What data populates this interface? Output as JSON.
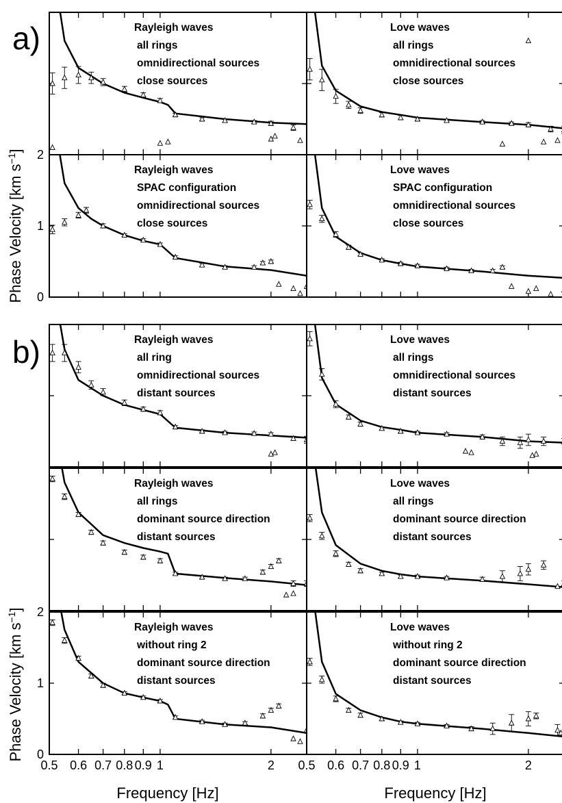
{
  "figure": {
    "group_labels": [
      "a)",
      "b)"
    ],
    "xlabel": "Frequency [Hz]",
    "ylabel": "Phase Velocity [km s",
    "ylabel_sup": "−1",
    "ylabel_end": "]",
    "x_ticks": [
      {
        "v": 0.5,
        "label": "0.5"
      },
      {
        "v": 0.6,
        "label": "0.6"
      },
      {
        "v": 0.7,
        "label": "0.7"
      },
      {
        "v": 0.8,
        "label": "0.8"
      },
      {
        "v": 0.9,
        "label": "0.9"
      },
      {
        "v": 1.0,
        "label": "1"
      },
      {
        "v": 2.0,
        "label": "2"
      }
    ],
    "y_ticks": [
      {
        "v": 0,
        "label": "0"
      },
      {
        "v": 1,
        "label": "1"
      },
      {
        "v": 2,
        "label": "2"
      }
    ]
  },
  "chart_data": [
    {
      "type": "line",
      "panel": "a-rayleigh-top",
      "xscale": "log",
      "xlim": [
        0.5,
        2.5
      ],
      "ylim": [
        0,
        2
      ],
      "annotations": [
        "Rayleigh waves",
        "all rings",
        "omnidirectional sources",
        "close sources"
      ],
      "model_curve": {
        "x": [
          0.5,
          0.55,
          0.6,
          0.7,
          0.8,
          0.9,
          1.0,
          1.05,
          1.1,
          1.5,
          2.0,
          2.5
        ],
        "y": [
          3.0,
          1.6,
          1.22,
          1.0,
          0.87,
          0.8,
          0.74,
          0.7,
          0.58,
          0.5,
          0.45,
          0.43
        ]
      },
      "observed": {
        "x": [
          0.51,
          0.55,
          0.6,
          0.65,
          0.7,
          0.8,
          0.9,
          1.0,
          1.1,
          1.3,
          1.5,
          1.8,
          2.0,
          2.3
        ],
        "y": [
          1.0,
          1.08,
          1.12,
          1.08,
          1.02,
          0.92,
          0.84,
          0.76,
          0.56,
          0.5,
          0.48,
          0.46,
          0.44,
          0.38
        ],
        "err": [
          0.15,
          0.15,
          0.12,
          0.08,
          0.05,
          0.04,
          0.03,
          0.03,
          0.02,
          0.02,
          0.02,
          0.02,
          0.03,
          0.04
        ]
      },
      "outliers": {
        "x": [
          0.51,
          1.0,
          1.05,
          2.0,
          2.05,
          2.4
        ],
        "y": [
          0.1,
          0.16,
          0.18,
          0.22,
          0.26,
          0.2
        ]
      }
    },
    {
      "type": "line",
      "panel": "a-love-top",
      "xscale": "log",
      "xlim": [
        0.5,
        2.5
      ],
      "ylim": [
        0,
        2
      ],
      "annotations": [
        "Love waves",
        "all rings",
        "omnidirectional sources",
        "close sources"
      ],
      "model_curve": {
        "x": [
          0.5,
          0.55,
          0.6,
          0.7,
          0.8,
          0.9,
          1.0,
          1.5,
          2.0,
          2.5
        ],
        "y": [
          2.9,
          1.25,
          0.9,
          0.68,
          0.6,
          0.56,
          0.52,
          0.46,
          0.42,
          0.37
        ]
      },
      "observed": {
        "x": [
          0.51,
          0.55,
          0.6,
          0.65,
          0.7,
          0.8,
          0.9,
          1.0,
          1.2,
          1.5,
          1.8,
          2.0,
          2.3,
          2.5
        ],
        "y": [
          1.2,
          1.05,
          0.82,
          0.7,
          0.62,
          0.56,
          0.52,
          0.5,
          0.48,
          0.46,
          0.44,
          0.42,
          0.36,
          0.35
        ],
        "err": [
          0.15,
          0.15,
          0.1,
          0.05,
          0.04,
          0.03,
          0.03,
          0.02,
          0.02,
          0.02,
          0.02,
          0.03,
          0.04,
          0.05
        ]
      },
      "outliers": {
        "x": [
          1.7,
          2.0,
          2.2,
          2.4
        ],
        "y": [
          0.15,
          1.6,
          0.18,
          0.2
        ]
      }
    },
    {
      "type": "line",
      "panel": "a-rayleigh-spac",
      "xscale": "log",
      "xlim": [
        0.5,
        2.5
      ],
      "ylim": [
        0,
        2
      ],
      "annotations": [
        "Rayleigh waves",
        "SPAC configuration",
        "omnidirectional sources",
        "close sources"
      ],
      "model_curve": {
        "x": [
          0.5,
          0.55,
          0.6,
          0.65,
          0.7,
          0.8,
          0.9,
          1.0,
          1.1,
          1.5,
          2.0,
          2.5
        ],
        "y": [
          2.9,
          1.6,
          1.25,
          1.1,
          1.0,
          0.87,
          0.79,
          0.74,
          0.55,
          0.43,
          0.38,
          0.3
        ]
      },
      "observed": {
        "x": [
          0.51,
          0.55,
          0.6,
          0.63,
          0.7,
          0.8,
          0.9,
          1.0,
          1.1,
          1.3,
          1.5,
          1.8,
          1.9,
          2.0
        ],
        "y": [
          0.95,
          1.05,
          1.15,
          1.22,
          1.0,
          0.87,
          0.8,
          0.74,
          0.56,
          0.45,
          0.42,
          0.42,
          0.48,
          0.5
        ],
        "err": [
          0.06,
          0.05,
          0.04,
          0.04,
          0.03,
          0.02,
          0.02,
          0.02,
          0.02,
          0.02,
          0.02,
          0.02,
          0.02,
          0.02
        ]
      },
      "outliers": {
        "x": [
          2.1,
          2.3,
          2.4,
          2.5
        ],
        "y": [
          0.18,
          0.12,
          0.05,
          0.15
        ]
      }
    },
    {
      "type": "line",
      "panel": "a-love-spac",
      "xscale": "log",
      "xlim": [
        0.5,
        2.5
      ],
      "ylim": [
        0,
        2
      ],
      "annotations": [
        "Love waves",
        "SPAC configuration",
        "omnidirectional sources",
        "close sources"
      ],
      "model_curve": {
        "x": [
          0.5,
          0.55,
          0.6,
          0.7,
          0.8,
          0.9,
          1.0,
          1.5,
          2.0,
          2.5
        ],
        "y": [
          2.9,
          1.25,
          0.85,
          0.62,
          0.52,
          0.47,
          0.43,
          0.36,
          0.3,
          0.27
        ]
      },
      "observed": {
        "x": [
          0.51,
          0.55,
          0.6,
          0.65,
          0.7,
          0.8,
          0.9,
          1.0,
          1.2,
          1.4,
          1.6,
          1.7
        ],
        "y": [
          1.3,
          1.1,
          0.88,
          0.7,
          0.6,
          0.52,
          0.47,
          0.44,
          0.4,
          0.37,
          0.37,
          0.42
        ],
        "err": [
          0.06,
          0.05,
          0.04,
          0.03,
          0.02,
          0.02,
          0.02,
          0.02,
          0.02,
          0.02,
          0.02,
          0.02
        ]
      },
      "outliers": {
        "x": [
          1.8,
          2.0,
          2.1,
          2.3,
          2.5
        ],
        "y": [
          0.15,
          0.08,
          0.12,
          0.04,
          0.1
        ]
      }
    },
    {
      "type": "line",
      "panel": "b-rayleigh-1",
      "xscale": "log",
      "xlim": [
        0.5,
        2.5
      ],
      "ylim": [
        0,
        2
      ],
      "annotations": [
        "Rayleigh waves",
        "all ring",
        "omnidirectional sources",
        "distant sources"
      ],
      "model_curve": {
        "x": [
          0.5,
          0.55,
          0.6,
          0.7,
          0.8,
          0.9,
          1.0,
          1.1,
          1.5,
          2.0,
          2.5
        ],
        "y": [
          2.9,
          1.65,
          1.22,
          1.0,
          0.87,
          0.8,
          0.74,
          0.55,
          0.48,
          0.44,
          0.41
        ]
      },
      "observed": {
        "x": [
          0.51,
          0.55,
          0.6,
          0.65,
          0.7,
          0.8,
          0.9,
          1.0,
          1.1,
          1.3,
          1.5,
          1.8,
          2.0,
          2.3,
          2.5
        ],
        "y": [
          1.6,
          1.6,
          1.4,
          1.15,
          1.05,
          0.9,
          0.81,
          0.76,
          0.56,
          0.5,
          0.48,
          0.47,
          0.46,
          0.4,
          0.38
        ],
        "err": [
          0.12,
          0.12,
          0.08,
          0.06,
          0.05,
          0.04,
          0.03,
          0.03,
          0.02,
          0.02,
          0.02,
          0.02,
          0.02,
          0.03,
          0.05
        ]
      },
      "outliers": {
        "x": [
          2.0,
          2.05
        ],
        "y": [
          0.18,
          0.2
        ]
      }
    },
    {
      "type": "line",
      "panel": "b-love-1",
      "xscale": "log",
      "xlim": [
        0.5,
        2.5
      ],
      "ylim": [
        0,
        2
      ],
      "annotations": [
        "Love waves",
        "all rings",
        "omnidirectional sources",
        "distant sources"
      ],
      "model_curve": {
        "x": [
          0.5,
          0.55,
          0.6,
          0.7,
          0.8,
          0.9,
          1.0,
          1.5,
          2.0,
          2.5
        ],
        "y": [
          2.9,
          1.25,
          0.88,
          0.65,
          0.56,
          0.52,
          0.48,
          0.42,
          0.36,
          0.34
        ]
      },
      "observed": {
        "x": [
          0.51,
          0.55,
          0.6,
          0.65,
          0.7,
          0.8,
          0.9,
          1.0,
          1.2,
          1.5,
          1.7,
          1.9,
          2.0,
          2.2,
          2.5
        ],
        "y": [
          1.8,
          1.3,
          0.88,
          0.7,
          0.6,
          0.54,
          0.5,
          0.48,
          0.46,
          0.42,
          0.36,
          0.34,
          0.38,
          0.36,
          0.36
        ],
        "err": [
          0.1,
          0.08,
          0.05,
          0.03,
          0.03,
          0.02,
          0.02,
          0.02,
          0.02,
          0.03,
          0.06,
          0.08,
          0.08,
          0.06,
          0.04
        ]
      },
      "outliers": {
        "x": [
          1.35,
          1.4,
          2.05,
          2.1
        ],
        "y": [
          0.22,
          0.2,
          0.16,
          0.18
        ]
      }
    },
    {
      "type": "line",
      "panel": "b-rayleigh-2",
      "xscale": "log",
      "xlim": [
        0.5,
        2.5
      ],
      "ylim": [
        0,
        2
      ],
      "annotations": [
        "Rayleigh waves",
        "all rings",
        "dominant source direction",
        "distant sources"
      ],
      "model_curve": {
        "x": [
          0.5,
          0.55,
          0.6,
          0.7,
          0.8,
          0.9,
          1.0,
          1.05,
          1.1,
          1.5,
          2.0,
          2.5
        ],
        "y": [
          3.0,
          1.8,
          1.38,
          1.06,
          0.95,
          0.88,
          0.83,
          0.8,
          0.52,
          0.46,
          0.41,
          0.36
        ]
      },
      "observed": {
        "x": [
          0.51,
          0.55,
          0.6,
          0.65,
          0.7,
          0.8,
          0.9,
          1.0,
          1.1,
          1.3,
          1.5,
          1.7,
          1.9,
          2.0,
          2.1,
          2.3,
          2.5
        ],
        "y": [
          1.85,
          1.6,
          1.35,
          1.1,
          0.95,
          0.82,
          0.75,
          0.7,
          0.52,
          0.47,
          0.45,
          0.45,
          0.54,
          0.62,
          0.7,
          0.38,
          0.38
        ],
        "err": [
          0.04,
          0.04,
          0.03,
          0.03,
          0.03,
          0.03,
          0.03,
          0.03,
          0.02,
          0.02,
          0.02,
          0.02,
          0.03,
          0.03,
          0.03,
          0.04,
          0.04
        ]
      },
      "outliers": {
        "x": [
          2.2,
          2.3
        ],
        "y": [
          0.22,
          0.24
        ]
      }
    },
    {
      "type": "line",
      "panel": "b-love-2",
      "xscale": "log",
      "xlim": [
        0.5,
        2.5
      ],
      "ylim": [
        0,
        2
      ],
      "annotations": [
        "Love waves",
        "all rings",
        "dominant source direction",
        "distant sources"
      ],
      "model_curve": {
        "x": [
          0.5,
          0.55,
          0.6,
          0.7,
          0.8,
          0.9,
          1.0,
          1.5,
          2.0,
          2.5
        ],
        "y": [
          2.9,
          1.38,
          0.92,
          0.66,
          0.56,
          0.51,
          0.48,
          0.42,
          0.37,
          0.33
        ]
      },
      "observed": {
        "x": [
          0.51,
          0.55,
          0.6,
          0.65,
          0.7,
          0.8,
          0.9,
          1.0,
          1.2,
          1.5,
          1.7,
          1.9,
          2.0,
          2.2,
          2.5
        ],
        "y": [
          1.3,
          1.05,
          0.8,
          0.65,
          0.56,
          0.52,
          0.48,
          0.48,
          0.46,
          0.44,
          0.48,
          0.52,
          0.58,
          0.64,
          0.38
        ],
        "err": [
          0.05,
          0.05,
          0.04,
          0.03,
          0.03,
          0.02,
          0.02,
          0.02,
          0.02,
          0.03,
          0.08,
          0.1,
          0.08,
          0.06,
          0.04
        ]
      },
      "outliers": {
        "x": [
          2.4,
          2.5
        ],
        "y": [
          0.34,
          0.36
        ]
      }
    },
    {
      "type": "line",
      "panel": "b-rayleigh-3",
      "xscale": "log",
      "xlim": [
        0.5,
        2.5
      ],
      "ylim": [
        0,
        2
      ],
      "annotations": [
        "Rayleigh waves",
        "without ring  2",
        "dominant source direction",
        "distant sources"
      ],
      "model_curve": {
        "x": [
          0.5,
          0.55,
          0.6,
          0.7,
          0.8,
          0.9,
          1.0,
          1.05,
          1.1,
          1.5,
          2.0,
          2.5
        ],
        "y": [
          2.9,
          1.75,
          1.3,
          1.0,
          0.86,
          0.8,
          0.75,
          0.7,
          0.5,
          0.42,
          0.38,
          0.3
        ]
      },
      "observed": {
        "x": [
          0.51,
          0.55,
          0.6,
          0.65,
          0.7,
          0.8,
          0.9,
          1.0,
          1.1,
          1.3,
          1.5,
          1.7,
          1.9,
          2.0,
          2.1
        ],
        "y": [
          1.85,
          1.6,
          1.35,
          1.1,
          0.97,
          0.86,
          0.8,
          0.75,
          0.52,
          0.46,
          0.42,
          0.44,
          0.54,
          0.62,
          0.68
        ],
        "err": [
          0.04,
          0.04,
          0.03,
          0.03,
          0.03,
          0.02,
          0.02,
          0.02,
          0.02,
          0.02,
          0.02,
          0.02,
          0.03,
          0.03,
          0.03
        ]
      },
      "outliers": {
        "x": [
          2.3,
          2.4,
          2.5
        ],
        "y": [
          0.22,
          0.18,
          0.34
        ]
      }
    },
    {
      "type": "line",
      "panel": "b-love-3",
      "xscale": "log",
      "xlim": [
        0.5,
        2.5
      ],
      "ylim": [
        0,
        2
      ],
      "annotations": [
        "Love waves",
        "without ring  2",
        "dominant source direction",
        "distant sources"
      ],
      "model_curve": {
        "x": [
          0.5,
          0.55,
          0.6,
          0.7,
          0.8,
          0.9,
          1.0,
          1.5,
          2.0,
          2.5
        ],
        "y": [
          2.9,
          1.3,
          0.85,
          0.62,
          0.52,
          0.46,
          0.43,
          0.36,
          0.3,
          0.25
        ]
      },
      "observed": {
        "x": [
          0.51,
          0.55,
          0.6,
          0.65,
          0.7,
          0.8,
          0.9,
          1.0,
          1.2,
          1.4,
          1.6,
          1.8,
          2.0,
          2.1,
          2.4
        ],
        "y": [
          1.3,
          1.05,
          0.78,
          0.62,
          0.55,
          0.5,
          0.45,
          0.43,
          0.4,
          0.36,
          0.36,
          0.44,
          0.5,
          0.54,
          0.34
        ],
        "err": [
          0.05,
          0.05,
          0.04,
          0.03,
          0.03,
          0.02,
          0.02,
          0.02,
          0.02,
          0.03,
          0.08,
          0.12,
          0.1,
          0.04,
          0.08
        ]
      },
      "outliers": {
        "x": [
          2.45,
          2.5
        ],
        "y": [
          0.3,
          0.3
        ]
      }
    }
  ]
}
